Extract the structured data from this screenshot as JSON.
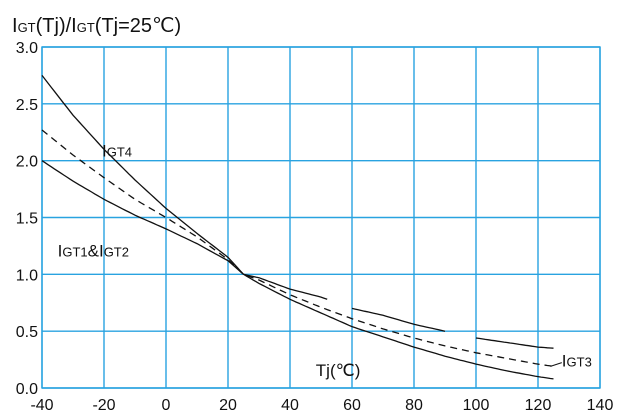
{
  "chart_data": {
    "type": "line",
    "ylabel_parts": [
      "I",
      "GT",
      "(Tj)/I",
      "GT",
      "(Tj=25℃)"
    ],
    "xlabel": "Tj(℃)",
    "xlim": [
      -40,
      140
    ],
    "ylim": [
      0.0,
      3.0
    ],
    "x_ticks": [
      "-40",
      "-20",
      "0",
      "20",
      "40",
      "60",
      "80",
      "100",
      "120",
      "140"
    ],
    "y_ticks": [
      "0.0",
      "0.5",
      "1.0",
      "1.5",
      "2.0",
      "2.5",
      "3.0"
    ],
    "grid": true,
    "series": [
      {
        "name_parts": [
          "I",
          "GT4"
        ],
        "style": "solid",
        "x": [
          -40,
          -30,
          -20,
          -10,
          0,
          10,
          20,
          25,
          30,
          40,
          50,
          60,
          70,
          80,
          90,
          100,
          110,
          120,
          125
        ],
        "y": [
          2.75,
          2.4,
          2.1,
          1.83,
          1.58,
          1.36,
          1.15,
          1.0,
          0.92,
          0.78,
          0.66,
          0.54,
          0.45,
          0.36,
          0.28,
          0.21,
          0.15,
          0.1,
          0.08
        ],
        "dashed_segments": []
      },
      {
        "name_parts": [
          "I",
          "GT1",
          "&I",
          "GT2"
        ],
        "style": "solid",
        "x": [
          -40,
          -30,
          -20,
          -10,
          0,
          10,
          20,
          25,
          30,
          40,
          50,
          60,
          70,
          80,
          90,
          100,
          110,
          120,
          125
        ],
        "y": [
          2.0,
          1.82,
          1.66,
          1.52,
          1.4,
          1.27,
          1.12,
          1.0,
          0.97,
          0.87,
          0.8,
          0.7,
          0.64,
          0.56,
          0.5,
          0.44,
          0.4,
          0.36,
          0.35
        ],
        "visible_ranges": [
          [
            -40,
            52
          ],
          [
            60,
            90
          ],
          [
            100,
            125
          ]
        ]
      },
      {
        "name_parts": [
          "I",
          "GT3"
        ],
        "style": "dashed",
        "x": [
          -40,
          -30,
          -20,
          -10,
          0,
          10,
          20,
          25,
          30,
          40,
          50,
          60,
          70,
          80,
          90,
          100,
          110,
          120,
          125
        ],
        "y": [
          2.27,
          2.05,
          1.85,
          1.66,
          1.5,
          1.33,
          1.13,
          1.0,
          0.95,
          0.82,
          0.71,
          0.61,
          0.52,
          0.44,
          0.37,
          0.31,
          0.26,
          0.21,
          0.19
        ]
      }
    ],
    "labels": {
      "gt4_anchor": [
        -20,
        2.0
      ],
      "gt12_anchor": [
        -34,
        1.2
      ],
      "gt3_anchor": [
        128,
        0.1
      ],
      "xlabel_anchor": [
        58,
        0.07
      ]
    }
  }
}
